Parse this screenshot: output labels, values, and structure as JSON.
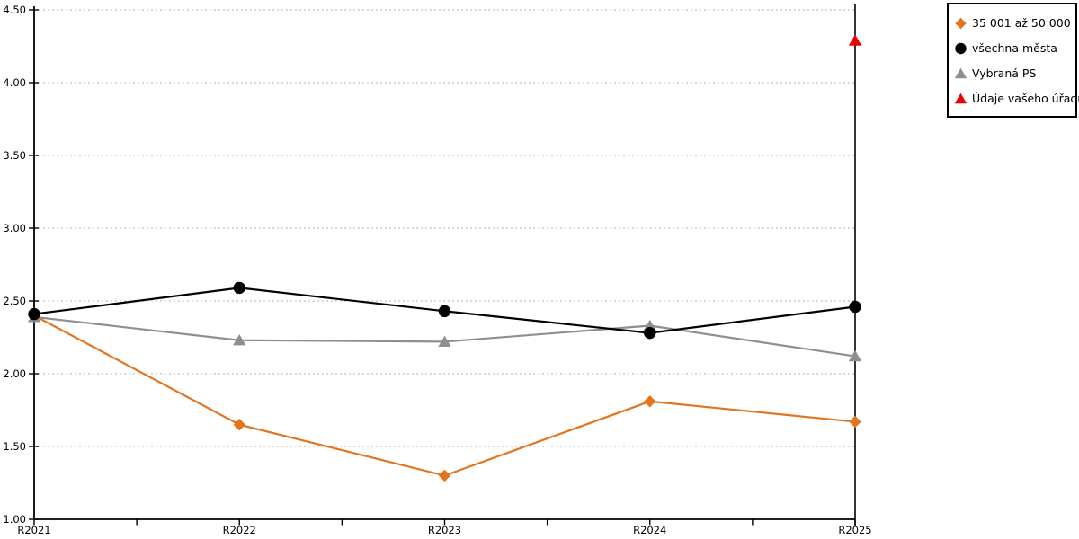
{
  "chart_data": {
    "type": "line",
    "title": "",
    "xlabel": "",
    "ylabel": "",
    "categories": [
      "R2021",
      "R2022",
      "R2023",
      "R2024",
      "R2025"
    ],
    "series": [
      {
        "name": "35 001 až 50 000",
        "marker": "diamond",
        "color": "#e2751d",
        "values": [
          2.4,
          1.65,
          1.3,
          1.81,
          1.67
        ]
      },
      {
        "name": "všechna města",
        "marker": "circle",
        "color": "#000000",
        "values": [
          2.41,
          2.59,
          2.43,
          2.28,
          2.46
        ]
      },
      {
        "name": "Vybraná PS",
        "marker": "triangle",
        "color": "#8f8f8f",
        "values": [
          2.39,
          2.23,
          2.22,
          2.33,
          2.12
        ]
      },
      {
        "name": "Údaje vašeho úřadu",
        "marker": "triangle",
        "color": "#ee0000",
        "values": [
          null,
          null,
          null,
          null,
          4.29
        ]
      }
    ],
    "ylim": [
      1.0,
      4.5
    ],
    "ytick_step": 0.5,
    "ytick_labels": [
      "1.00",
      "1.50",
      "2.00",
      "2.50",
      "3.00",
      "3.50",
      "4.00",
      "4.50"
    ],
    "grid": "horizontal-dotted",
    "grid_color": "#b3b3b3",
    "axis_color": "#000000",
    "legend_position": "top-right",
    "highlight_category": "R2025"
  }
}
